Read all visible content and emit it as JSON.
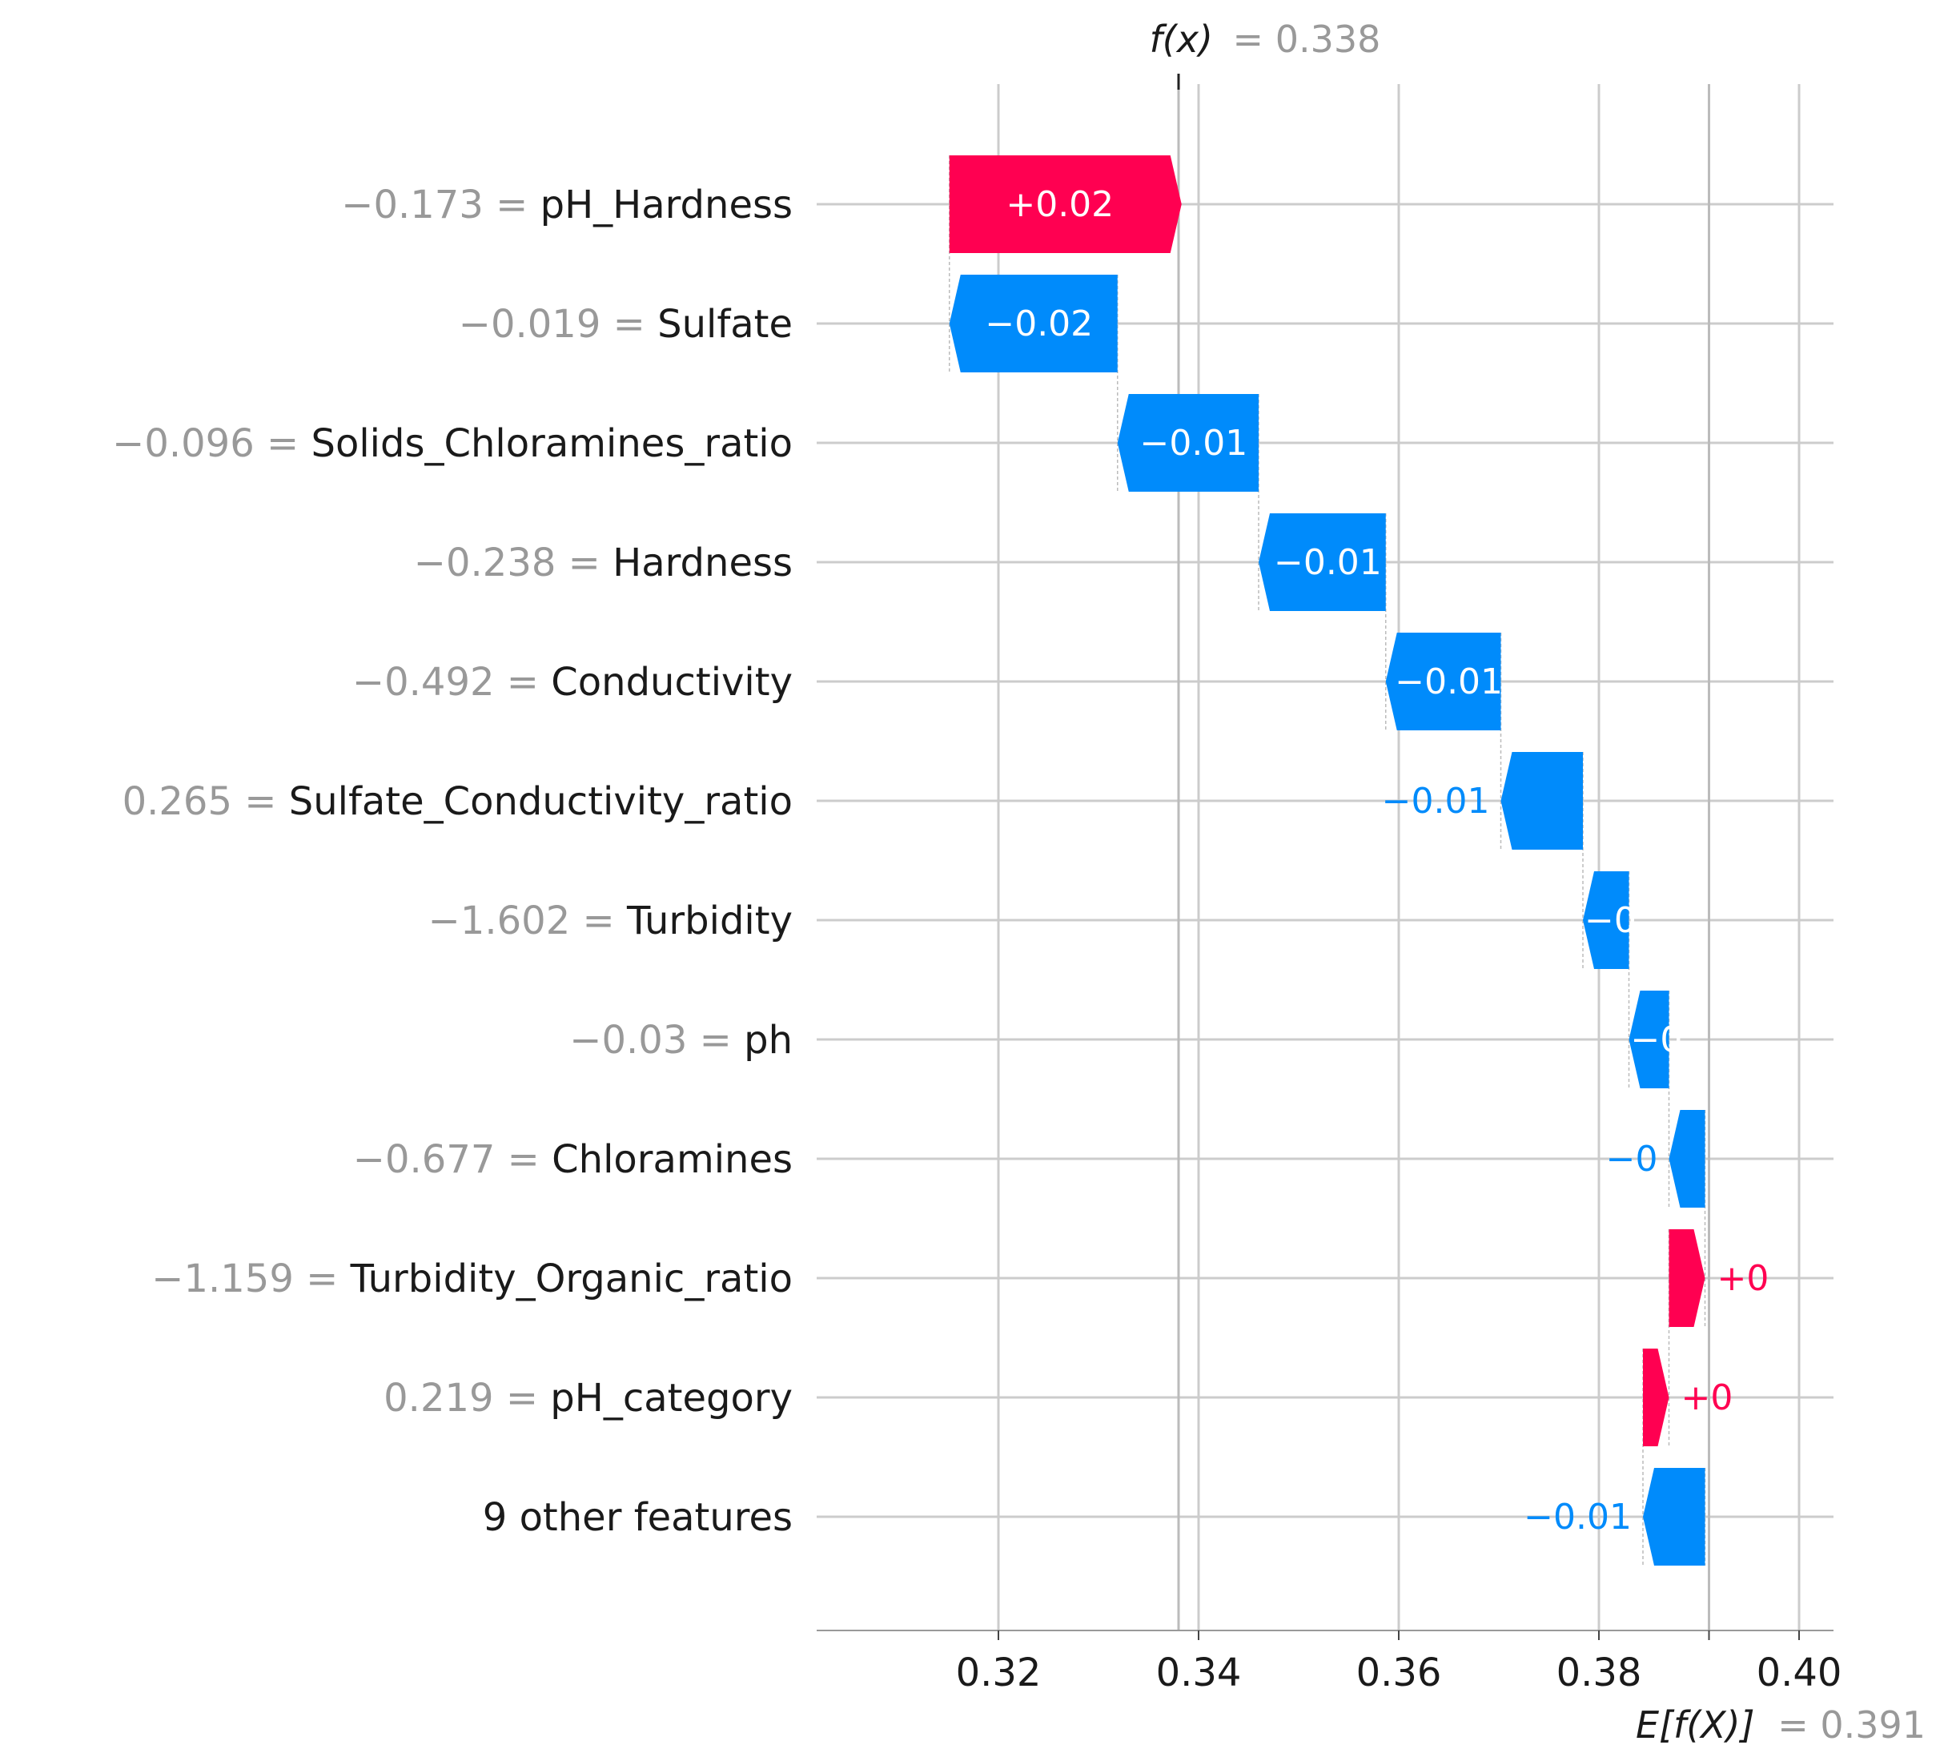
{
  "chart_data": {
    "type": "waterfall",
    "fx_label": "f(x)",
    "fx_value": 0.338,
    "fx_value_text": "= 0.338",
    "efx_label": "E[f(X)]",
    "efx_value": 0.391,
    "efx_value_text": "= 0.391",
    "xlim": [
      0.302,
      0.404
    ],
    "xticks": [
      0.32,
      0.34,
      0.36,
      0.38,
      0.4
    ],
    "xtick_labels": [
      "0.32",
      "0.34",
      "0.36",
      "0.38",
      "0.40"
    ],
    "colors": {
      "positive": "#ff0051",
      "negative": "#008bfb"
    },
    "features": [
      {
        "value_text": "−0.173 =",
        "name": "pH_Hardness",
        "start": 0.3151,
        "end": 0.3383,
        "label": "+0.02",
        "label_inside": true
      },
      {
        "value_text": "−0.019 =",
        "name": "Sulfate",
        "start": 0.3319,
        "end": 0.3151,
        "label": "−0.02",
        "label_inside": true
      },
      {
        "value_text": "−0.096 =",
        "name": "Solids_Chloramines_ratio",
        "start": 0.346,
        "end": 0.3319,
        "label": "−0.01",
        "label_inside": true
      },
      {
        "value_text": "−0.238 =",
        "name": "Hardness",
        "start": 0.3587,
        "end": 0.346,
        "label": "−0.01",
        "label_inside": true
      },
      {
        "value_text": "−0.492 =",
        "name": "Conductivity",
        "start": 0.3702,
        "end": 0.3587,
        "label": "−0.01",
        "label_inside": true
      },
      {
        "value_text": "0.265 =",
        "name": "Sulfate_Conductivity_ratio",
        "start": 0.3784,
        "end": 0.3702,
        "label": "−0.01",
        "label_inside": false
      },
      {
        "value_text": "−1.602 =",
        "name": "Turbidity",
        "start": 0.383,
        "end": 0.3784,
        "label": "−0",
        "label_inside": true
      },
      {
        "value_text": "−0.03 =",
        "name": "ph",
        "start": 0.387,
        "end": 0.383,
        "label": "−0",
        "label_inside": true
      },
      {
        "value_text": "−0.677 =",
        "name": "Chloramines",
        "start": 0.3906,
        "end": 0.387,
        "label": "−0",
        "label_inside": false
      },
      {
        "value_text": "−1.159 =",
        "name": "Turbidity_Organic_ratio",
        "start": 0.387,
        "end": 0.3906,
        "label": "+0",
        "label_inside": false
      },
      {
        "value_text": "0.219 =",
        "name": "pH_category",
        "start": 0.3844,
        "end": 0.387,
        "label": "+0",
        "label_inside": false
      },
      {
        "value_text": "",
        "name": "9 other features",
        "start": 0.3906,
        "end": 0.3844,
        "label": "−0.01",
        "label_inside": false
      }
    ]
  }
}
